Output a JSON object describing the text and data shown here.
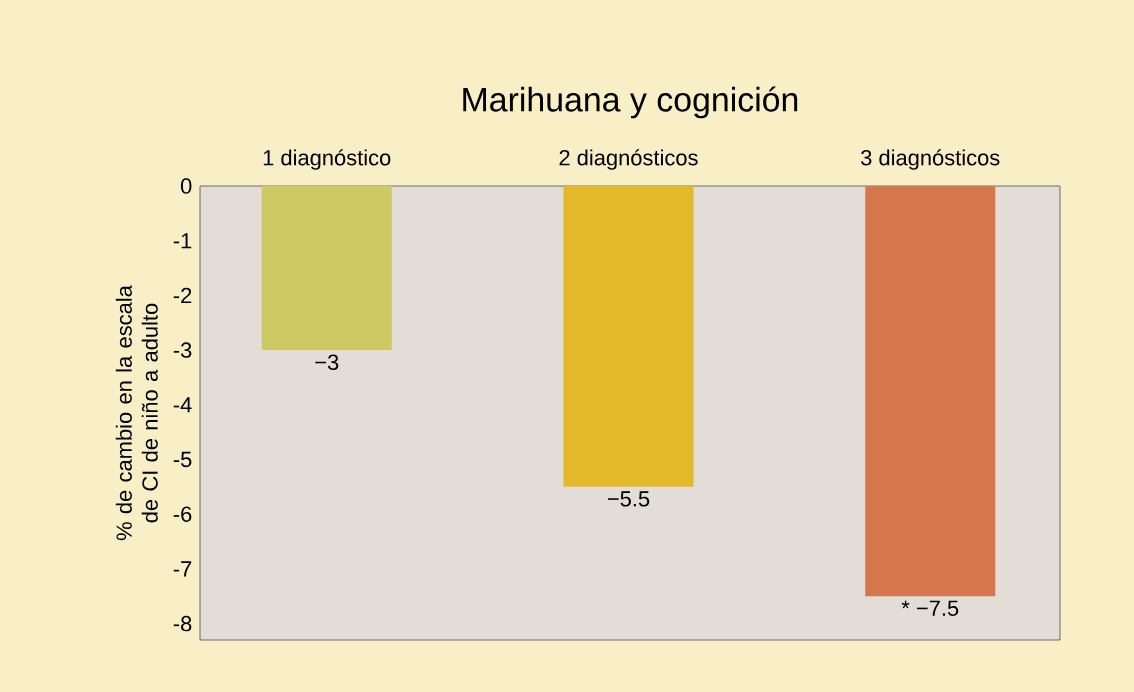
{
  "chart_data": {
    "type": "bar",
    "title": "Marihuana y cognición",
    "ylabel": "% de cambio en la escala de CI de niño a adulto",
    "categories": [
      "1 diagnóstico",
      "2 diagnósticos",
      "3 diagnósticos"
    ],
    "values": [
      -3,
      -5.5,
      -7.5
    ],
    "colors": [
      "#cdc963",
      "#e3b92b",
      "#d4764e"
    ],
    "value_labels": [
      "−3",
      "−5.5",
      "* −7.5"
    ],
    "ylim": [
      -8.3,
      0
    ],
    "yticks": [
      0,
      -1,
      -2,
      -3,
      -4,
      -5,
      -6,
      -7,
      -8
    ],
    "grid": false
  }
}
